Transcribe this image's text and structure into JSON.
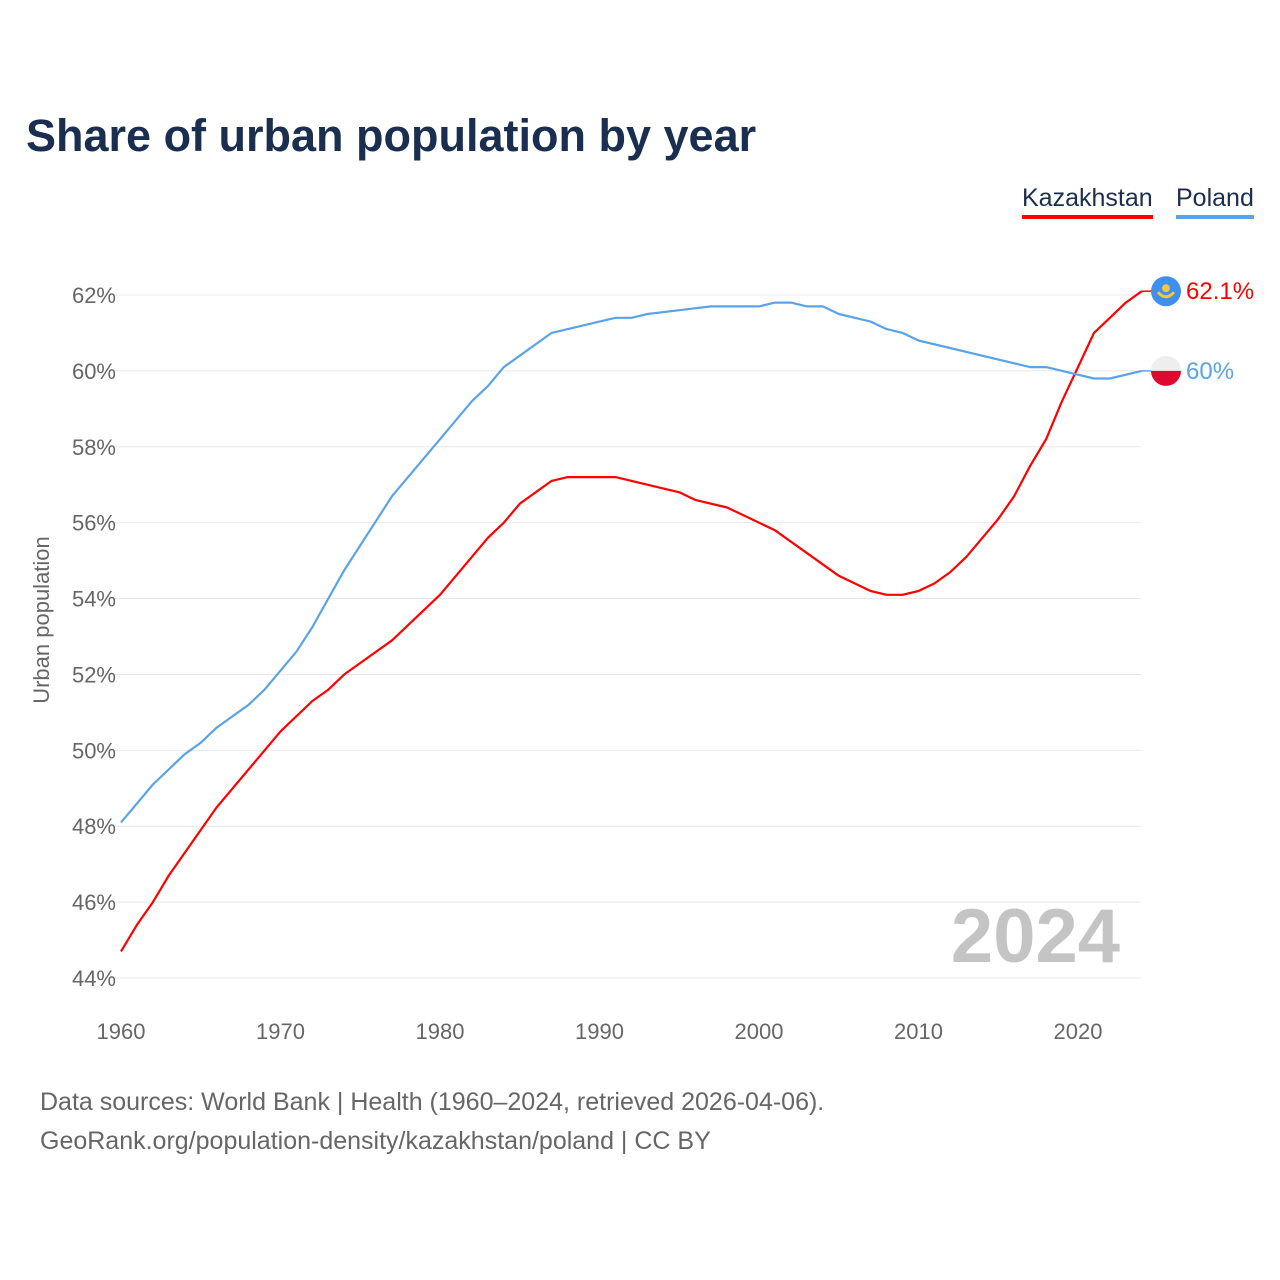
{
  "chart_data": {
    "type": "line",
    "title": "Share of urban population by year",
    "ylabel": "Urban population",
    "xlabel": "",
    "xlim": [
      1960,
      2024
    ],
    "ylim": [
      44,
      62
    ],
    "x_ticks": [
      1960,
      1970,
      1980,
      1990,
      2000,
      2010,
      2020
    ],
    "y_ticks": [
      44,
      46,
      48,
      50,
      52,
      54,
      56,
      58,
      60,
      62
    ],
    "y_tick_labels": [
      "44%",
      "46%",
      "48%",
      "50%",
      "52%",
      "54%",
      "56%",
      "58%",
      "60%",
      "62%"
    ],
    "x_tick_labels": [
      "1960",
      "1970",
      "1980",
      "1990",
      "2000",
      "2010",
      "2020"
    ],
    "grid": true,
    "legend_placement": "top-right",
    "year_label": "2024",
    "series": [
      {
        "name": "Kazakhstan",
        "color": "#ff0000",
        "end_label": "62.1%",
        "flag_icon": "kazakhstan-flag",
        "points": [
          [
            1960,
            44.7
          ],
          [
            1961,
            45.4
          ],
          [
            1962,
            46.0
          ],
          [
            1963,
            46.7
          ],
          [
            1966,
            48.5
          ],
          [
            1970,
            50.5
          ],
          [
            1972,
            51.3
          ],
          [
            1973,
            51.6
          ],
          [
            1974,
            52.0
          ],
          [
            1977,
            52.9
          ],
          [
            1980,
            54.1
          ],
          [
            1983,
            55.6
          ],
          [
            1984,
            56.0
          ],
          [
            1985,
            56.5
          ],
          [
            1987,
            57.1
          ],
          [
            1988,
            57.2
          ],
          [
            1991,
            57.2
          ],
          [
            1995,
            56.8
          ],
          [
            1996,
            56.6
          ],
          [
            1998,
            56.4
          ],
          [
            2001,
            55.8
          ],
          [
            2005,
            54.6
          ],
          [
            2007,
            54.2
          ],
          [
            2008,
            54.1
          ],
          [
            2009,
            54.1
          ],
          [
            2010,
            54.2
          ],
          [
            2011,
            54.4
          ],
          [
            2012,
            54.7
          ],
          [
            2013,
            55.1
          ],
          [
            2015,
            56.1
          ],
          [
            2016,
            56.7
          ],
          [
            2017,
            57.5
          ],
          [
            2018,
            58.2
          ],
          [
            2019,
            59.2
          ],
          [
            2020,
            60.1
          ],
          [
            2021,
            61.0
          ],
          [
            2022,
            61.4
          ],
          [
            2023,
            61.8
          ],
          [
            2024,
            62.1
          ]
        ]
      },
      {
        "name": "Poland",
        "color": "#5ba3e8",
        "end_label": "60%",
        "flag_icon": "poland-flag",
        "points": [
          [
            1960,
            48.1
          ],
          [
            1962,
            49.1
          ],
          [
            1964,
            49.9
          ],
          [
            1965,
            50.2
          ],
          [
            1966,
            50.6
          ],
          [
            1968,
            51.2
          ],
          [
            1969,
            51.6
          ],
          [
            1971,
            52.6
          ],
          [
            1972,
            53.25
          ],
          [
            1974,
            54.75
          ],
          [
            1977,
            56.7
          ],
          [
            1980,
            58.2
          ],
          [
            1982,
            59.2
          ],
          [
            1983,
            59.6
          ],
          [
            1984,
            60.1
          ],
          [
            1987,
            61.0
          ],
          [
            1990,
            61.3
          ],
          [
            1991,
            61.4
          ],
          [
            1992,
            61.4
          ],
          [
            1993,
            61.5
          ],
          [
            1995,
            61.6
          ],
          [
            1997,
            61.7
          ],
          [
            2000,
            61.7
          ],
          [
            2001,
            61.8
          ],
          [
            2002,
            61.8
          ],
          [
            2003,
            61.7
          ],
          [
            2004,
            61.7
          ],
          [
            2005,
            61.5
          ],
          [
            2007,
            61.3
          ],
          [
            2008,
            61.1
          ],
          [
            2009,
            61.0
          ],
          [
            2010,
            60.8
          ],
          [
            2017,
            60.1
          ],
          [
            2018,
            60.1
          ],
          [
            2020,
            59.9
          ],
          [
            2021,
            59.8
          ],
          [
            2022,
            59.8
          ],
          [
            2024,
            60.0
          ]
        ]
      }
    ]
  },
  "footer": {
    "line1": "Data sources: World Bank | Health (1960–2024, retrieved 2026-04-06).",
    "line2": "GeoRank.org/population-density/kazakhstan/poland | CC BY"
  }
}
